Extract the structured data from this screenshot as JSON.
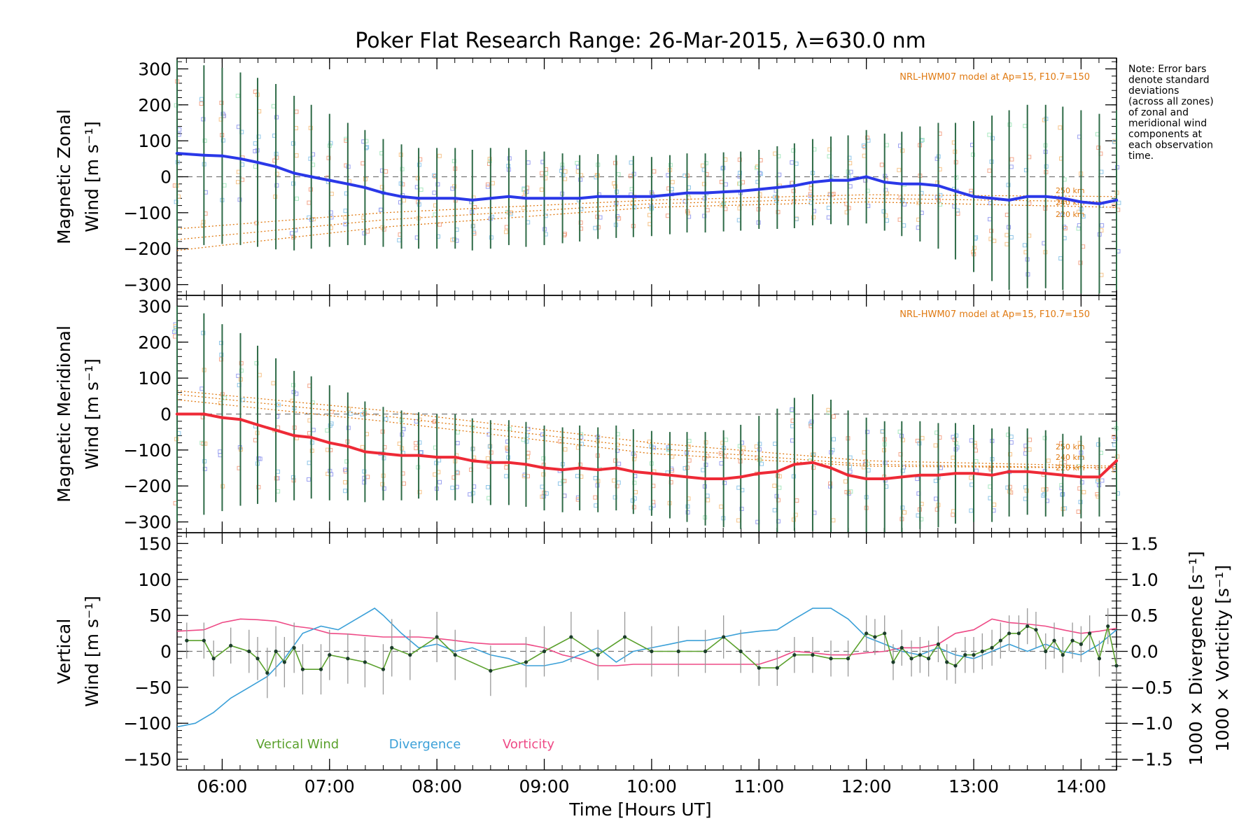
{
  "title": "Poker Flat Research Range: 26-Mar-2015, λ=630.0 nm",
  "note_lines": [
    "Note: Error bars",
    "denote standard",
    "deviations",
    "(across all zones)",
    "of zonal and",
    "meridional wind",
    "components at",
    "each observation",
    "time."
  ],
  "xlabel": "Time [Hours UT]",
  "x_ticks": [
    "06:00",
    "07:00",
    "08:00",
    "09:00",
    "10:00",
    "11:00",
    "12:00",
    "13:00",
    "14:00"
  ],
  "colors": {
    "zonal": "#2a38e8",
    "meridional": "#ee2a36",
    "vertical": "#5aa02c",
    "divergence": "#3ba0d8",
    "vorticity": "#ee4a86",
    "hwm": "#e07a12",
    "error_bar": "#2e6b47"
  },
  "chart_data": [
    {
      "type": "line",
      "panel": "zonal",
      "ylabel_lines": [
        "Magnetic Zonal",
        "Wind [m s⁻¹]"
      ],
      "ylim": [
        -330,
        330
      ],
      "y_ticks": [
        "300",
        "200",
        "100",
        "0",
        "−100",
        "−200",
        "−300"
      ],
      "xlim": [
        5.58,
        14.33
      ],
      "annotation": "NRL-HWM07 model at Ap=15, F10.7=150",
      "hwm_labels": [
        "250 km",
        "240 km",
        "220 km"
      ],
      "series": [
        {
          "x": [
            5.58,
            5.83,
            6.0,
            6.17,
            6.33,
            6.5,
            6.67,
            6.83,
            7.0,
            7.17,
            7.33,
            7.5,
            7.67,
            7.83,
            8.0,
            8.17,
            8.33,
            8.5,
            8.67,
            8.83,
            9.0,
            9.17,
            9.33,
            9.5,
            9.67,
            9.83,
            10.0,
            10.17,
            10.33,
            10.5,
            10.67,
            10.83,
            11.0,
            11.17,
            11.33,
            11.5,
            11.67,
            11.83,
            12.0,
            12.17,
            12.33,
            12.5,
            12.67,
            12.83,
            13.0,
            13.17,
            13.33,
            13.5,
            13.67,
            13.83,
            14.0,
            14.17,
            14.33
          ],
          "values": [
            65,
            60,
            58,
            50,
            40,
            28,
            10,
            0,
            -10,
            -20,
            -30,
            -45,
            -55,
            -60,
            -60,
            -60,
            -65,
            -60,
            -55,
            -60,
            -60,
            -60,
            -60,
            -55,
            -55,
            -55,
            -55,
            -50,
            -45,
            -45,
            -42,
            -40,
            -35,
            -30,
            -25,
            -15,
            -10,
            -10,
            0,
            -15,
            -20,
            -20,
            -25,
            -40,
            -55,
            -60,
            -65,
            -55,
            -55,
            -60,
            -70,
            -75,
            -65
          ]
        }
      ],
      "error_sd": [
        260,
        250,
        245,
        240,
        235,
        230,
        215,
        200,
        185,
        170,
        160,
        150,
        145,
        140,
        140,
        140,
        140,
        140,
        135,
        135,
        130,
        125,
        120,
        118,
        115,
        113,
        110,
        110,
        110,
        110,
        110,
        110,
        110,
        115,
        118,
        120,
        122,
        125,
        130,
        135,
        145,
        160,
        175,
        190,
        210,
        230,
        250,
        255,
        255,
        255,
        255,
        250,
        250
      ]
    },
    {
      "type": "line",
      "panel": "meridional",
      "ylabel_lines": [
        "Magnetic Meridional",
        "Wind [m s⁻¹]"
      ],
      "ylim": [
        -330,
        330
      ],
      "y_ticks": [
        "300",
        "200",
        "100",
        "0",
        "−100",
        "−200",
        "−300"
      ],
      "xlim": [
        5.58,
        14.33
      ],
      "annotation": "NRL-HWM07 model at Ap=15, F10.7=150",
      "hwm_labels": [
        "250 km",
        "240 km",
        "220 km"
      ],
      "series": [
        {
          "x": [
            5.58,
            5.83,
            6.0,
            6.17,
            6.33,
            6.5,
            6.67,
            6.83,
            7.0,
            7.17,
            7.33,
            7.5,
            7.67,
            7.83,
            8.0,
            8.17,
            8.33,
            8.5,
            8.67,
            8.83,
            9.0,
            9.17,
            9.33,
            9.5,
            9.67,
            9.83,
            10.0,
            10.17,
            10.33,
            10.5,
            10.67,
            10.83,
            11.0,
            11.17,
            11.33,
            11.5,
            11.67,
            11.83,
            12.0,
            12.17,
            12.33,
            12.5,
            12.67,
            12.83,
            13.0,
            13.17,
            13.33,
            13.5,
            13.67,
            13.83,
            14.0,
            14.17,
            14.33
          ],
          "values": [
            0,
            0,
            -10,
            -15,
            -30,
            -45,
            -60,
            -65,
            -80,
            -90,
            -105,
            -110,
            -115,
            -115,
            -120,
            -120,
            -130,
            -135,
            -135,
            -140,
            -150,
            -155,
            -150,
            -155,
            -150,
            -160,
            -165,
            -170,
            -175,
            -180,
            -180,
            -175,
            -165,
            -160,
            -140,
            -135,
            -150,
            -170,
            -180,
            -180,
            -175,
            -170,
            -170,
            -165,
            -165,
            -170,
            -160,
            -160,
            -165,
            -170,
            -175,
            -175,
            -130
          ]
        }
      ],
      "error_sd": [
        300,
        280,
        260,
        240,
        220,
        200,
        180,
        170,
        160,
        150,
        140,
        130,
        125,
        120,
        120,
        120,
        118,
        118,
        118,
        118,
        118,
        118,
        118,
        118,
        118,
        118,
        118,
        120,
        125,
        130,
        135,
        145,
        160,
        175,
        185,
        190,
        190,
        180,
        170,
        160,
        155,
        150,
        145,
        140,
        135,
        130,
        125,
        120,
        120,
        115,
        115,
        110,
        110
      ]
    },
    {
      "type": "line",
      "panel": "vertical",
      "ylabel_lines": [
        "Vertical",
        "Wind [m s⁻¹]"
      ],
      "right_ylabel_1": "1000 × Divergence [s⁻¹]",
      "right_ylabel_2": "1000 × Vorticity [s⁻¹]",
      "ylim": [
        -165,
        165
      ],
      "y_ticks": [
        "150",
        "100",
        "50",
        "0",
        "−50",
        "−100",
        "−150"
      ],
      "y2lim": [
        -1.65,
        1.65
      ],
      "y2_ticks": [
        "1.5",
        "1.0",
        "0.5",
        "0.0",
        "−0.5",
        "−1.0",
        "−1.5"
      ],
      "xlim": [
        5.58,
        14.33
      ],
      "legend": [
        "Vertical Wind",
        "Divergence",
        "Vorticity"
      ],
      "series": [
        {
          "name": "Vertical Wind",
          "x": [
            5.67,
            5.83,
            5.92,
            6.08,
            6.25,
            6.33,
            6.42,
            6.5,
            6.58,
            6.67,
            6.75,
            6.92,
            7.0,
            7.17,
            7.33,
            7.5,
            7.58,
            7.75,
            8.0,
            8.17,
            8.5,
            8.83,
            9.0,
            9.25,
            9.5,
            9.75,
            10.0,
            10.25,
            10.5,
            10.67,
            10.83,
            11.0,
            11.17,
            11.33,
            11.5,
            11.67,
            11.83,
            12.0,
            12.08,
            12.17,
            12.25,
            12.33,
            12.42,
            12.5,
            12.58,
            12.67,
            12.75,
            12.83,
            12.92,
            13.0,
            13.08,
            13.17,
            13.25,
            13.33,
            13.42,
            13.5,
            13.58,
            13.67,
            13.75,
            13.83,
            13.92,
            14.0,
            14.08,
            14.17,
            14.25,
            14.33
          ],
          "values": [
            15,
            15,
            -10,
            8,
            0,
            -10,
            -30,
            0,
            -15,
            5,
            -25,
            -25,
            -5,
            -10,
            -15,
            -25,
            5,
            -5,
            20,
            -5,
            -27,
            -15,
            0,
            20,
            -5,
            20,
            0,
            0,
            0,
            20,
            0,
            -23,
            -23,
            -5,
            -5,
            -10,
            -10,
            25,
            20,
            25,
            -15,
            5,
            -10,
            -5,
            -10,
            10,
            -15,
            -20,
            -5,
            -5,
            0,
            5,
            15,
            25,
            25,
            35,
            30,
            0,
            15,
            -5,
            15,
            10,
            25,
            -10,
            35,
            -20
          ]
        },
        {
          "name": "Divergence",
          "x": [
            5.58,
            5.75,
            5.92,
            6.08,
            6.25,
            6.42,
            6.58,
            6.75,
            6.92,
            7.08,
            7.25,
            7.42,
            7.5,
            7.67,
            7.83,
            8.0,
            8.17,
            8.33,
            8.5,
            8.67,
            8.83,
            9.0,
            9.17,
            9.33,
            9.5,
            9.67,
            9.83,
            10.0,
            10.17,
            10.33,
            10.5,
            10.67,
            10.83,
            11.0,
            11.17,
            11.33,
            11.5,
            11.67,
            11.83,
            12.0,
            12.17,
            12.33,
            12.5,
            12.67,
            12.83,
            13.0,
            13.17,
            13.33,
            13.5,
            13.67,
            13.83,
            14.0,
            14.17,
            14.33
          ],
          "values": [
            -1.05,
            -1.0,
            -0.85,
            -0.65,
            -0.5,
            -0.35,
            -0.1,
            0.25,
            0.35,
            0.3,
            0.45,
            0.6,
            0.5,
            0.25,
            0.05,
            0.1,
            0.0,
            0.05,
            -0.05,
            -0.1,
            -0.2,
            -0.2,
            -0.15,
            -0.05,
            0.05,
            -0.15,
            0.0,
            0.05,
            0.1,
            0.15,
            0.15,
            0.2,
            0.25,
            0.28,
            0.3,
            0.45,
            0.6,
            0.6,
            0.45,
            0.2,
            0.1,
            0.0,
            -0.05,
            0.05,
            -0.05,
            -0.1,
            0.0,
            0.1,
            0.0,
            0.1,
            0.0,
            -0.05,
            0.1,
            0.3
          ]
        },
        {
          "name": "Vorticity",
          "x": [
            5.58,
            5.83,
            6.0,
            6.17,
            6.33,
            6.5,
            6.67,
            6.83,
            7.0,
            7.17,
            7.33,
            7.5,
            7.67,
            7.83,
            8.0,
            8.17,
            8.33,
            8.5,
            8.67,
            8.83,
            9.0,
            9.17,
            9.33,
            9.5,
            9.67,
            9.83,
            10.0,
            10.17,
            10.33,
            10.5,
            10.67,
            10.83,
            11.0,
            11.17,
            11.33,
            11.5,
            11.67,
            11.83,
            12.0,
            12.17,
            12.33,
            12.5,
            12.67,
            12.83,
            13.0,
            13.17,
            13.33,
            13.5,
            13.67,
            13.83,
            14.0,
            14.17,
            14.33
          ],
          "values": [
            0.28,
            0.3,
            0.4,
            0.45,
            0.44,
            0.42,
            0.35,
            0.32,
            0.25,
            0.24,
            0.22,
            0.2,
            0.2,
            0.2,
            0.18,
            0.15,
            0.12,
            0.1,
            0.1,
            0.1,
            0.05,
            -0.05,
            -0.1,
            -0.2,
            -0.2,
            -0.18,
            -0.18,
            -0.18,
            -0.18,
            -0.18,
            -0.18,
            -0.18,
            -0.18,
            -0.1,
            0.0,
            -0.02,
            -0.05,
            -0.05,
            -0.02,
            0.0,
            0.05,
            0.05,
            0.1,
            0.25,
            0.3,
            0.45,
            0.4,
            0.38,
            0.35,
            0.3,
            0.25,
            0.28,
            0.32
          ]
        }
      ],
      "error_sd": [
        25,
        25,
        25,
        25,
        30,
        30,
        35,
        35,
        35,
        35,
        35,
        35,
        35,
        35,
        35,
        35,
        40,
        35,
        35,
        35,
        35,
        35,
        35,
        35,
        35,
        35,
        35,
        35,
        30,
        30,
        30,
        25,
        25,
        25,
        25,
        25,
        25,
        25,
        25,
        25,
        25,
        25,
        25,
        25,
        25,
        25,
        25,
        25,
        25,
        25,
        25,
        25,
        25,
        25,
        25,
        25,
        25,
        25,
        25,
        25,
        25,
        25,
        25,
        25,
        25,
        25
      ]
    }
  ]
}
